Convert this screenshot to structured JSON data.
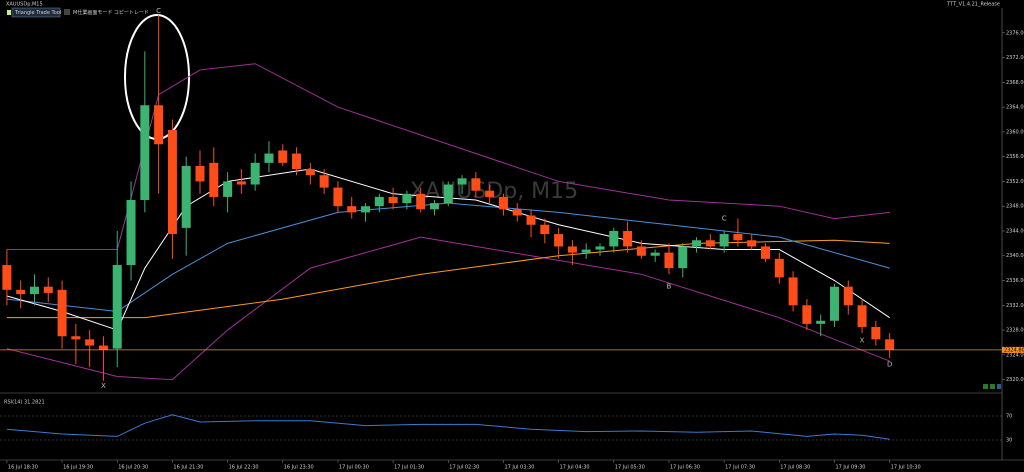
{
  "chart_data": [
    {
      "type": "candlestick",
      "title": "XAUUSDp,M15",
      "watermark": "XAUUSDp, M15",
      "toolbar": [
        "Triangle Trade Tool",
        "M仕業画面モード コピートレード"
      ],
      "version": "TTT_V1.4.21_Release",
      "bull_color": "#3cb371",
      "bear_color": "#ff4d1a",
      "xlim": [
        -0.5,
        72
      ],
      "ylim": [
        2318,
        2380
      ],
      "yticks": [
        {
          "value": 2320,
          "label": "2320.00"
        },
        {
          "value": 2324,
          "label": "2324.00"
        },
        {
          "value": 2328,
          "label": "2328.00"
        },
        {
          "value": 2332,
          "label": "2332.00"
        },
        {
          "value": 2336,
          "label": "2336.00"
        },
        {
          "value": 2340,
          "label": "2340.00"
        },
        {
          "value": 2344,
          "label": "2344.00"
        },
        {
          "value": 2348,
          "label": "2348.00"
        },
        {
          "value": 2352,
          "label": "2352.00"
        },
        {
          "value": 2356,
          "label": "2356.00"
        },
        {
          "value": 2360,
          "label": "2360.00"
        },
        {
          "value": 2364,
          "label": "2364.00"
        },
        {
          "value": 2368,
          "label": "2368.00"
        },
        {
          "value": 2372,
          "label": "2372.00"
        },
        {
          "value": 2376,
          "label": "2376.00"
        }
      ],
      "open": [
        2338.5,
        2334.5,
        2333.8,
        2335,
        2334.5,
        2327,
        2326.5,
        2325.5,
        2325,
        2338.5,
        2349,
        2364.3,
        2360.3,
        2344.5,
        2354.5,
        2355,
        2349.5,
        2352,
        2351.5,
        2355,
        2357,
        2356.5,
        2354,
        2353,
        2351,
        2348,
        2347,
        2348,
        2349.5,
        2348.5,
        2350,
        2347.5,
        2348.5,
        2351.5,
        2352.5,
        2350.5,
        2349.5,
        2347.5,
        2346.5,
        2345,
        2343.5,
        2341.5,
        2340.5,
        2341,
        2341.5,
        2344,
        2341.5,
        2340,
        2340.5,
        2338,
        2341.5,
        2342.5,
        2341.5,
        2343.5,
        2342.5,
        2341.5,
        2339.5,
        2336.5,
        2332,
        2329,
        2329.5,
        2335,
        2332,
        2328.5,
        2326.5
      ],
      "high": [
        2341,
        2336,
        2337,
        2336.5,
        2336,
        2329,
        2328,
        2327,
        2344,
        2352,
        2373,
        2378.9,
        2362,
        2356,
        2357,
        2357.5,
        2353.5,
        2354,
        2356.5,
        2358.5,
        2358,
        2357.5,
        2355,
        2354,
        2352,
        2349.5,
        2348.5,
        2350,
        2351,
        2350.5,
        2351,
        2349,
        2352,
        2353,
        2353.5,
        2351.5,
        2350,
        2348.5,
        2347.5,
        2346,
        2344.5,
        2342.5,
        2342,
        2342,
        2344.5,
        2345.5,
        2342.5,
        2341,
        2342,
        2342,
        2343,
        2343.5,
        2344,
        2346,
        2343.5,
        2342,
        2340.5,
        2337.5,
        2333,
        2330.5,
        2335.5,
        2336,
        2333,
        2329.5,
        2327.5
      ],
      "low": [
        2332,
        2331.5,
        2332,
        2332.5,
        2325,
        2322.5,
        2322,
        2319.8,
        2322,
        2336,
        2347,
        2350,
        2339.5,
        2340,
        2350,
        2348,
        2347,
        2350,
        2350.5,
        2353.5,
        2354.5,
        2353,
        2351.5,
        2350,
        2347,
        2346,
        2345.5,
        2347,
        2347.5,
        2347.5,
        2347,
        2346.5,
        2348,
        2350,
        2349.5,
        2348.5,
        2346.5,
        2345.5,
        2343,
        2342,
        2339.5,
        2338.5,
        2339.5,
        2340,
        2340.5,
        2340.5,
        2339.5,
        2339,
        2337,
        2336.5,
        2340.5,
        2341,
        2340.5,
        2341.5,
        2341,
        2339,
        2335.5,
        2331,
        2328,
        2327,
        2328.5,
        2330.5,
        2327.5,
        2325.5,
        2323.5
      ],
      "close": [
        2334.5,
        2333.8,
        2335,
        2334,
        2327,
        2326.5,
        2325.5,
        2324.8,
        2338.5,
        2349,
        2364.3,
        2358,
        2343.5,
        2354.5,
        2352,
        2349.5,
        2352,
        2351.5,
        2355,
        2356.5,
        2355,
        2354,
        2353,
        2351,
        2348,
        2347,
        2348,
        2349.5,
        2348.5,
        2350,
        2347.5,
        2348.5,
        2351.5,
        2352.5,
        2350.5,
        2349.5,
        2347.5,
        2346.5,
        2345,
        2343.5,
        2341.5,
        2340.5,
        2341,
        2341.5,
        2344,
        2341.5,
        2340,
        2340.5,
        2338,
        2341.5,
        2342.5,
        2341.5,
        2343.5,
        2342.5,
        2341.5,
        2339.5,
        2336.5,
        2332,
        2329,
        2329.5,
        2335,
        2332,
        2328.5,
        2326.5,
        2324.8
      ],
      "lines": [
        {
          "color": "#a0309a",
          "x": [
            0,
            8,
            11,
            14,
            18,
            24,
            32,
            40,
            48,
            56,
            60,
            64
          ],
          "values": [
            2341,
            2341,
            2366,
            2370,
            2371,
            2364,
            2358,
            2352,
            2349,
            2348,
            2346,
            2347
          ]
        },
        {
          "color": "#a0309a",
          "x": [
            0,
            8,
            12,
            16,
            22,
            30,
            38,
            46,
            56,
            64
          ],
          "values": [
            2325,
            2320.5,
            2320,
            2328,
            2338,
            2343,
            2340,
            2337,
            2330,
            2323
          ]
        },
        {
          "color": "#ff9a1f",
          "x": [
            0,
            10,
            20,
            30,
            40,
            50,
            60,
            64
          ],
          "values": [
            2330,
            2330,
            2333,
            2337,
            2340,
            2342,
            2342.5,
            2342
          ]
        },
        {
          "color": "#4a90d9",
          "x": [
            0,
            8,
            12,
            16,
            24,
            32,
            40,
            48,
            56,
            64
          ],
          "values": [
            2333,
            2331,
            2337,
            2342,
            2347,
            2348.5,
            2347,
            2345,
            2343,
            2338
          ]
        },
        {
          "color": "#ffffff",
          "x": [
            0,
            4,
            8,
            10,
            13,
            16,
            22,
            28,
            34,
            40,
            46,
            52,
            56,
            60,
            64
          ],
          "values": [
            2333.5,
            2331,
            2328,
            2338,
            2348,
            2352,
            2354,
            2350,
            2349,
            2345,
            2342,
            2341,
            2341,
            2336,
            2330
          ]
        }
      ],
      "bid": {
        "value": 2324.8,
        "label": "2324.80"
      },
      "annotations": [
        {
          "text": "X",
          "x": 7,
          "y": 2319
        },
        {
          "text": "C",
          "x": 11,
          "y": 2379.5
        },
        {
          "text": "B",
          "x": 48,
          "y": 2335
        },
        {
          "text": "C",
          "x": 52,
          "y": 2346
        },
        {
          "text": "X",
          "x": 62,
          "y": 2326.3
        },
        {
          "text": "D",
          "x": 64,
          "y": 2322.4
        }
      ]
    },
    {
      "type": "line",
      "title": "RSI(14) 31.2821",
      "xlim": [
        -0.5,
        72
      ],
      "ylim": [
        0,
        100
      ],
      "yticks": [
        30,
        70
      ],
      "xticks": [
        {
          "value": 0,
          "label": "16 Jul 18:30"
        },
        {
          "value": 4,
          "label": "16 Jul 19:30"
        },
        {
          "value": 8,
          "label": "16 Jul 20:30"
        },
        {
          "value": 12,
          "label": "16 Jul 21:30"
        },
        {
          "value": 16,
          "label": "16 Jul 22:30"
        },
        {
          "value": 20,
          "label": "16 Jul 23:30"
        },
        {
          "value": 24,
          "label": "17 Jul 00:30"
        },
        {
          "value": 28,
          "label": "17 Jul 01:30"
        },
        {
          "value": 32,
          "label": "17 Jul 02:30"
        },
        {
          "value": 36,
          "label": "17 Jul 03:30"
        },
        {
          "value": 40,
          "label": "17 Jul 04:30"
        },
        {
          "value": 44,
          "label": "17 Jul 05:30"
        },
        {
          "value": 48,
          "label": "17 Jul 06:30"
        },
        {
          "value": 52,
          "label": "17 Jul 07:30"
        },
        {
          "value": 56,
          "label": "17 Jul 08:30"
        },
        {
          "value": 60,
          "label": "17 Jul 09:30"
        },
        {
          "value": 64,
          "label": "17 Jul 10:30"
        }
      ],
      "series": [
        {
          "color": "#3a7bd5",
          "x": [
            0,
            4,
            8,
            10,
            12,
            14,
            18,
            22,
            26,
            30,
            34,
            38,
            42,
            46,
            50,
            54,
            58,
            60,
            62,
            64
          ],
          "values": [
            48,
            40,
            36,
            58,
            72,
            60,
            62,
            62,
            54,
            56,
            56,
            48,
            44,
            45,
            43,
            45,
            36,
            40,
            38,
            31.3
          ]
        }
      ]
    }
  ]
}
